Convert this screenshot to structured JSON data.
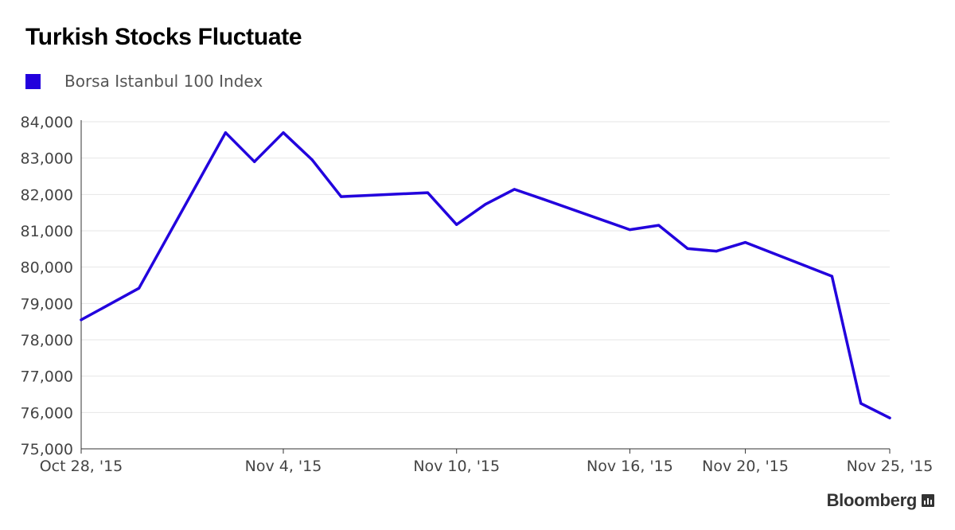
{
  "colors": {
    "series": "#2200dd",
    "grid": "#e6e6e6",
    "axis": "#333333",
    "tick_label": "#444444"
  },
  "brand": {
    "name": "Bloomberg",
    "icon": "bloomberg-chart-icon"
  },
  "chart_data": {
    "type": "line",
    "title": "Turkish Stocks Fluctuate",
    "xlabel": "",
    "ylabel": "",
    "x_ticks": [
      "Oct 28, '15",
      "Nov 4, '15",
      "Nov 10, '15",
      "Nov 16, '15",
      "Nov 20, '15",
      "Nov 25, '15"
    ],
    "ylim": [
      75000,
      84000
    ],
    "y_ticks": [
      75000,
      76000,
      77000,
      78000,
      79000,
      80000,
      81000,
      82000,
      83000,
      84000
    ],
    "y_tick_labels": [
      "75,000",
      "76,000",
      "77,000",
      "78,000",
      "79,000",
      "80,000",
      "81,000",
      "82,000",
      "83,000",
      "84,000"
    ],
    "grid": true,
    "legend_position": "top-left",
    "x": [
      "2015-10-28",
      "2015-10-30",
      "2015-11-02",
      "2015-11-03",
      "2015-11-04",
      "2015-11-05",
      "2015-11-06",
      "2015-11-09",
      "2015-11-10",
      "2015-11-11",
      "2015-11-12",
      "2015-11-13",
      "2015-11-16",
      "2015-11-17",
      "2015-11-18",
      "2015-11-19",
      "2015-11-20",
      "2015-11-23",
      "2015-11-24",
      "2015-11-25"
    ],
    "series": [
      {
        "name": "Borsa Istanbul 100 Index",
        "values": [
          78550,
          79420,
          83700,
          82900,
          83700,
          82950,
          81940,
          82050,
          81170,
          81730,
          82140,
          81870,
          81030,
          81150,
          80510,
          80440,
          80680,
          79750,
          76250,
          75850
        ]
      }
    ]
  }
}
